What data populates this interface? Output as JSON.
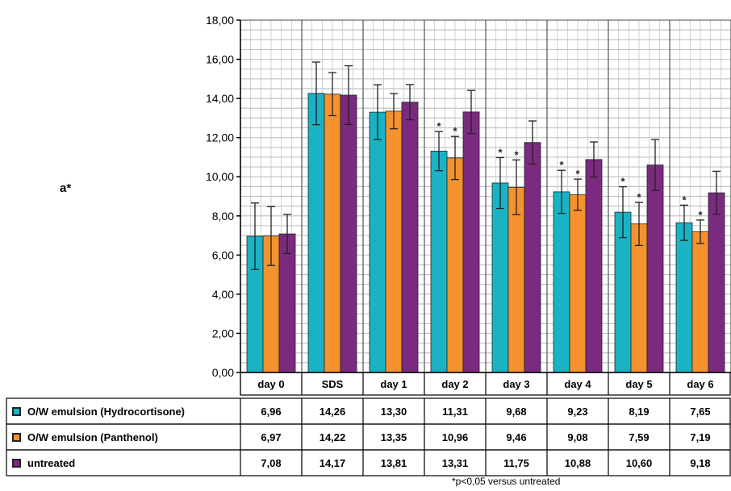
{
  "chart_data": {
    "type": "bar",
    "ylabel": "a*",
    "ylim": [
      0,
      18
    ],
    "y_ticks": [
      "0,00",
      "2,00",
      "4,00",
      "6,00",
      "8,00",
      "10,00",
      "12,00",
      "14,00",
      "16,00",
      "18,00"
    ],
    "y_tick_values": [
      0,
      2,
      4,
      6,
      8,
      10,
      12,
      14,
      16,
      18
    ],
    "grid": true,
    "categories": [
      "day 0",
      "SDS",
      "day 1",
      "day 2",
      "day 3",
      "day 4",
      "day 5",
      "day 6"
    ],
    "series": [
      {
        "name": "O/W emulsion (Hydrocortisone)",
        "color": "#19b3c4",
        "values": [
          6.96,
          14.26,
          13.3,
          11.31,
          9.68,
          9.23,
          8.19,
          7.65
        ],
        "value_labels": [
          "6,96",
          "14,26",
          "13,30",
          "11,31",
          "9,68",
          "9,23",
          "8,19",
          "7,65"
        ],
        "errors": [
          1.7,
          1.6,
          1.4,
          1.0,
          1.3,
          1.1,
          1.3,
          0.9
        ]
      },
      {
        "name": "O/W emulsion (Panthenol)",
        "color": "#f5922e",
        "values": [
          6.97,
          14.22,
          13.35,
          10.96,
          9.46,
          9.08,
          7.59,
          7.19
        ],
        "value_labels": [
          "6,97",
          "14,22",
          "13,35",
          "10,96",
          "9,46",
          "9,08",
          "7,59",
          "7,19"
        ],
        "errors": [
          1.5,
          1.1,
          0.9,
          1.1,
          1.4,
          0.8,
          1.1,
          0.6
        ]
      },
      {
        "name": "untreated",
        "color": "#7b2b7f",
        "values": [
          7.08,
          14.17,
          13.81,
          13.31,
          11.75,
          10.88,
          10.6,
          9.18
        ],
        "value_labels": [
          "7,08",
          "14,17",
          "13,81",
          "13,31",
          "11,75",
          "10,88",
          "10,60",
          "9,18"
        ],
        "errors": [
          1.0,
          1.5,
          0.9,
          1.1,
          1.1,
          0.9,
          1.3,
          1.1
        ]
      }
    ]
  },
  "footnote": "*p<0,05 versus untreated",
  "significance_marker": "*"
}
